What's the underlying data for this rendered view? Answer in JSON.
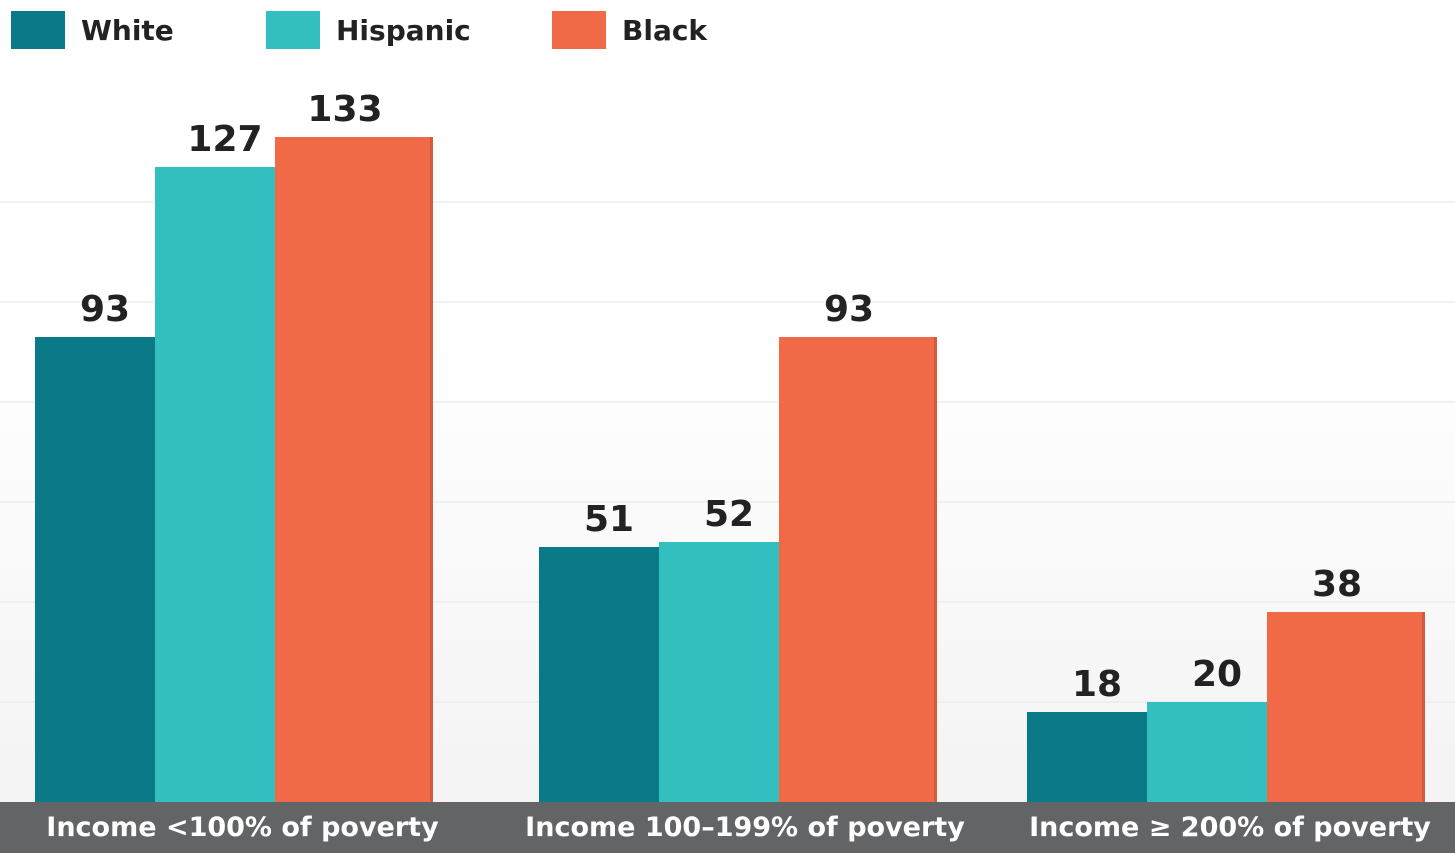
{
  "colors": {
    "white": "#0a7a89",
    "hispanic": "#33bfbf",
    "black": "#f06a47",
    "footer": "#636466",
    "gridline": "#e6e6e6",
    "value_text": "#222222"
  },
  "legend": [
    {
      "label": "White",
      "color": "#0a7a89"
    },
    {
      "label": "Hispanic",
      "color": "#33bfbf"
    },
    {
      "label": "Black",
      "color": "#f06a47"
    }
  ],
  "chart_data": {
    "type": "bar",
    "title": "",
    "xlabel": "",
    "ylabel": "",
    "categories": [
      "Income <100% of poverty",
      "Income 100–199% of poverty",
      "Income ≥ 200% of poverty"
    ],
    "series": [
      {
        "name": "White",
        "values": [
          93,
          51,
          18
        ]
      },
      {
        "name": "Hispanic",
        "values": [
          127,
          52,
          20
        ]
      },
      {
        "name": "Black",
        "values": [
          133,
          93,
          38
        ]
      }
    ],
    "ylim": [
      0,
      150
    ],
    "grid": true,
    "legend_position": "top-left",
    "data_labels": true
  }
}
